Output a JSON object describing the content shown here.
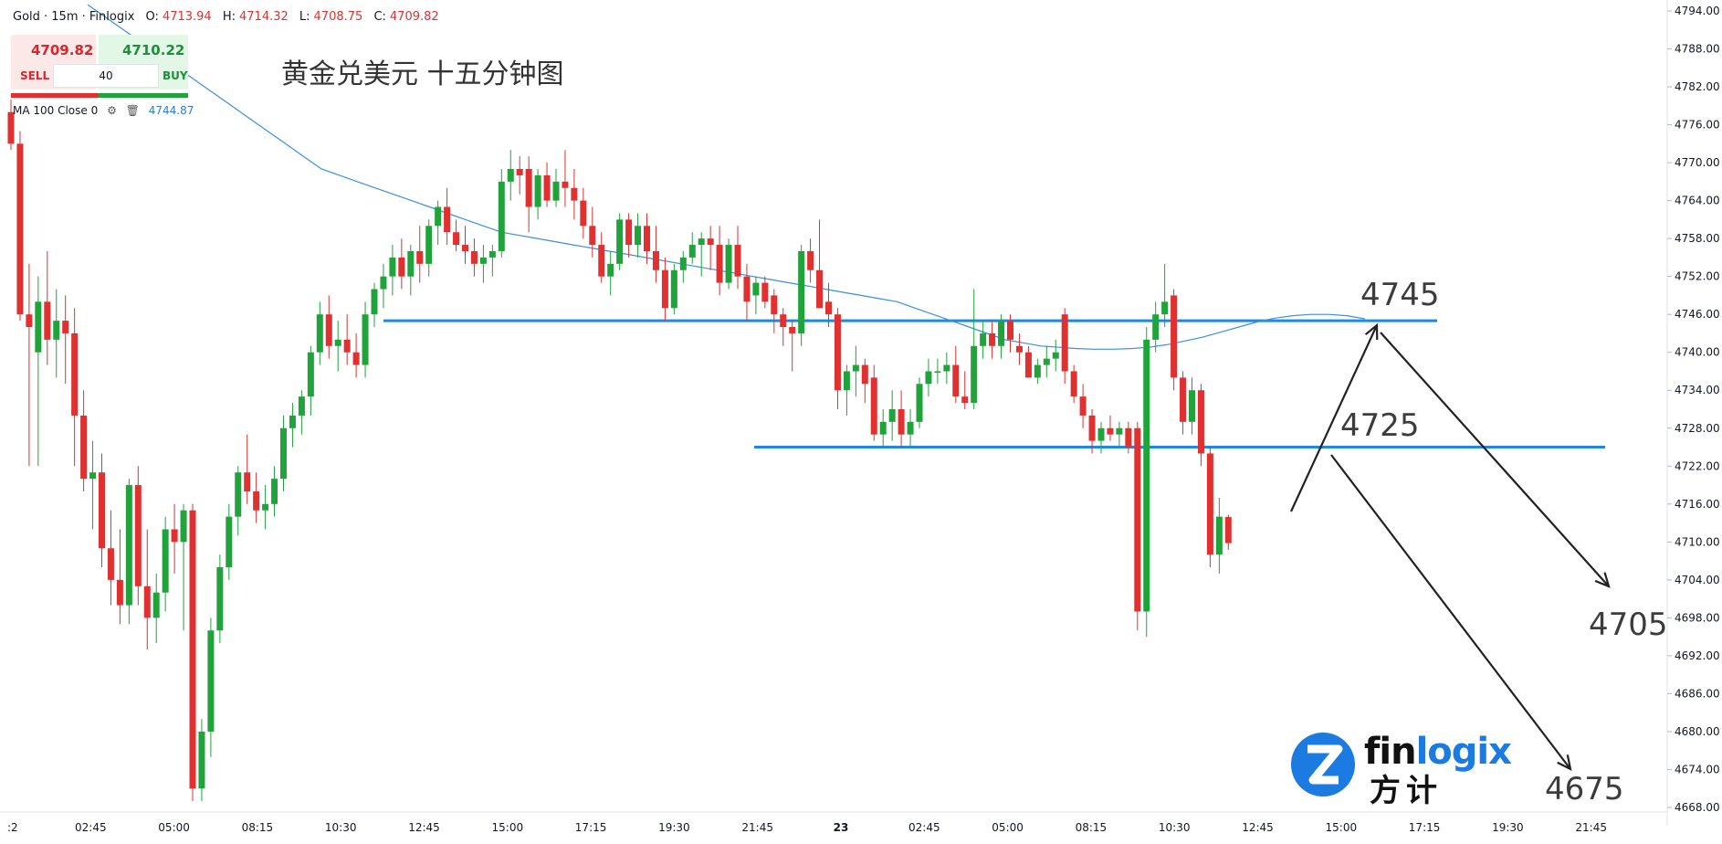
{
  "header": {
    "symbol": "Gold · 15m · Finlogix",
    "open_label": "O:",
    "open": "4713.94",
    "high_label": "H:",
    "high": "4714.32",
    "low_label": "L:",
    "low": "4708.75",
    "close_label": "C:",
    "close": "4709.82"
  },
  "trade_panel": {
    "sell_price": "4709.82",
    "buy_price": "4710.22",
    "sell_label": "SELL",
    "buy_label": "BUY",
    "quantity": "40"
  },
  "indicator": {
    "label": "MA 100 Close 0",
    "value": "4744.87",
    "icons": [
      "settings-gear-icon",
      "trash-icon"
    ]
  },
  "title": "黄金兑美元 十五分钟图",
  "annotations": {
    "level_upper": "4745",
    "level_lower": "4725",
    "target_upper": "4705",
    "target_lower": "4675"
  },
  "logo": {
    "word_a": "fin",
    "word_b": "logix",
    "cn": "方计"
  },
  "colors": {
    "up": "#1fa33a",
    "down": "#e03030",
    "ma": "#3d8fe0",
    "level_line": "#1e88e5",
    "arrow": "#222222"
  },
  "chart_data": {
    "type": "candlestick",
    "title": "黄金兑美元 十五分钟图",
    "ylim": [
      4668,
      4794
    ],
    "y_ticks": [
      "4794.00",
      "4788.00",
      "4782.00",
      "4776.00",
      "4770.00",
      "4764.00",
      "4758.00",
      "4752.00",
      "4746.00",
      "4740.00",
      "4734.00",
      "4728.00",
      "4722.00",
      "4716.00",
      "4710.00",
      "4704.00",
      "4698.00",
      "4692.00",
      "4686.00",
      "4680.00",
      "4674.00",
      "4668.00"
    ],
    "x_ticks": [
      ":2",
      "02:45",
      "05:00",
      "08:15",
      "10:30",
      "12:45",
      "15:00",
      "17:15",
      "19:30",
      "21:45",
      "23",
      "02:45",
      "05:00",
      "08:15",
      "10:30",
      "12:45",
      "15:00",
      "17:15",
      "19:30",
      "21:45"
    ],
    "candles": [
      {
        "o": 4778,
        "h": 4780,
        "l": 4772,
        "c": 4773
      },
      {
        "o": 4773,
        "h": 4775,
        "l": 4745,
        "c": 4746
      },
      {
        "o": 4746,
        "h": 4754,
        "l": 4722,
        "c": 4744
      },
      {
        "o": 4740,
        "h": 4752,
        "l": 4722,
        "c": 4748
      },
      {
        "o": 4748,
        "h": 4756,
        "l": 4738,
        "c": 4742
      },
      {
        "o": 4742,
        "h": 4750,
        "l": 4736,
        "c": 4745
      },
      {
        "o": 4745,
        "h": 4749,
        "l": 4735,
        "c": 4743
      },
      {
        "o": 4743,
        "h": 4747,
        "l": 4722,
        "c": 4730
      },
      {
        "o": 4730,
        "h": 4734,
        "l": 4718,
        "c": 4720
      },
      {
        "o": 4720,
        "h": 4726,
        "l": 4712,
        "c": 4721
      },
      {
        "o": 4721,
        "h": 4724,
        "l": 4706,
        "c": 4709
      },
      {
        "o": 4709,
        "h": 4715,
        "l": 4700,
        "c": 4704
      },
      {
        "o": 4704,
        "h": 4712,
        "l": 4697,
        "c": 4700
      },
      {
        "o": 4700,
        "h": 4720,
        "l": 4697,
        "c": 4719
      },
      {
        "o": 4719,
        "h": 4722,
        "l": 4700,
        "c": 4703
      },
      {
        "o": 4703,
        "h": 4712,
        "l": 4693,
        "c": 4698
      },
      {
        "o": 4698,
        "h": 4705,
        "l": 4694,
        "c": 4702
      },
      {
        "o": 4702,
        "h": 4714,
        "l": 4699,
        "c": 4712
      },
      {
        "o": 4712,
        "h": 4716,
        "l": 4705,
        "c": 4710
      },
      {
        "o": 4710,
        "h": 4716,
        "l": 4696,
        "c": 4715
      },
      {
        "o": 4715,
        "h": 4716,
        "l": 4669,
        "c": 4671
      },
      {
        "o": 4671,
        "h": 4682,
        "l": 4669,
        "c": 4680
      },
      {
        "o": 4680,
        "h": 4698,
        "l": 4676,
        "c": 4696
      },
      {
        "o": 4696,
        "h": 4708,
        "l": 4694,
        "c": 4706
      },
      {
        "o": 4706,
        "h": 4716,
        "l": 4704,
        "c": 4714
      },
      {
        "o": 4714,
        "h": 4722,
        "l": 4711,
        "c": 4721
      },
      {
        "o": 4721,
        "h": 4727,
        "l": 4716,
        "c": 4718
      },
      {
        "o": 4718,
        "h": 4721,
        "l": 4713,
        "c": 4715
      },
      {
        "o": 4715,
        "h": 4719,
        "l": 4712,
        "c": 4716
      },
      {
        "o": 4716,
        "h": 4722,
        "l": 4714,
        "c": 4720
      },
      {
        "o": 4720,
        "h": 4730,
        "l": 4718,
        "c": 4728
      },
      {
        "o": 4728,
        "h": 4732,
        "l": 4725,
        "c": 4730
      },
      {
        "o": 4730,
        "h": 4734,
        "l": 4727,
        "c": 4733
      },
      {
        "o": 4733,
        "h": 4741,
        "l": 4730,
        "c": 4740
      },
      {
        "o": 4740,
        "h": 4748,
        "l": 4738,
        "c": 4746
      },
      {
        "o": 4746,
        "h": 4749,
        "l": 4739,
        "c": 4741
      },
      {
        "o": 4741,
        "h": 4745,
        "l": 4737,
        "c": 4742
      },
      {
        "o": 4742,
        "h": 4746,
        "l": 4738,
        "c": 4740
      },
      {
        "o": 4740,
        "h": 4743,
        "l": 4736,
        "c": 4738
      },
      {
        "o": 4738,
        "h": 4748,
        "l": 4736,
        "c": 4746
      },
      {
        "o": 4746,
        "h": 4751,
        "l": 4744,
        "c": 4750
      },
      {
        "o": 4750,
        "h": 4754,
        "l": 4747,
        "c": 4752
      },
      {
        "o": 4752,
        "h": 4757,
        "l": 4749,
        "c": 4755
      },
      {
        "o": 4755,
        "h": 4758,
        "l": 4750,
        "c": 4752
      },
      {
        "o": 4752,
        "h": 4757,
        "l": 4749,
        "c": 4756
      },
      {
        "o": 4756,
        "h": 4760,
        "l": 4751,
        "c": 4754
      },
      {
        "o": 4754,
        "h": 4761,
        "l": 4752,
        "c": 4760
      },
      {
        "o": 4760,
        "h": 4764,
        "l": 4757,
        "c": 4763
      },
      {
        "o": 4763,
        "h": 4766,
        "l": 4757,
        "c": 4759
      },
      {
        "o": 4759,
        "h": 4761,
        "l": 4756,
        "c": 4757
      },
      {
        "o": 4757,
        "h": 4760,
        "l": 4754,
        "c": 4756
      },
      {
        "o": 4756,
        "h": 4758,
        "l": 4752,
        "c": 4754
      },
      {
        "o": 4754,
        "h": 4757,
        "l": 4751,
        "c": 4755
      },
      {
        "o": 4755,
        "h": 4757,
        "l": 4752,
        "c": 4756
      },
      {
        "o": 4756,
        "h": 4769,
        "l": 4755,
        "c": 4767
      },
      {
        "o": 4767,
        "h": 4772,
        "l": 4764,
        "c": 4769
      },
      {
        "o": 4769,
        "h": 4771,
        "l": 4765,
        "c": 4768
      },
      {
        "o": 4769,
        "h": 4771,
        "l": 4759,
        "c": 4763
      },
      {
        "o": 4763,
        "h": 4769,
        "l": 4761,
        "c": 4768
      },
      {
        "o": 4768,
        "h": 4770,
        "l": 4763,
        "c": 4764
      },
      {
        "o": 4764,
        "h": 4769,
        "l": 4763,
        "c": 4767
      },
      {
        "o": 4767,
        "h": 4772,
        "l": 4763,
        "c": 4766
      },
      {
        "o": 4766,
        "h": 4769,
        "l": 4761,
        "c": 4764
      },
      {
        "o": 4764,
        "h": 4766,
        "l": 4758,
        "c": 4760
      },
      {
        "o": 4760,
        "h": 4763,
        "l": 4755,
        "c": 4757
      },
      {
        "o": 4757,
        "h": 4759,
        "l": 4751,
        "c": 4752
      },
      {
        "o": 4752,
        "h": 4756,
        "l": 4749,
        "c": 4754
      },
      {
        "o": 4754,
        "h": 4762,
        "l": 4753,
        "c": 4761
      },
      {
        "o": 4761,
        "h": 4762,
        "l": 4755,
        "c": 4757
      },
      {
        "o": 4757,
        "h": 4762,
        "l": 4755,
        "c": 4760
      },
      {
        "o": 4760,
        "h": 4762,
        "l": 4754,
        "c": 4756
      },
      {
        "o": 4756,
        "h": 4760,
        "l": 4751,
        "c": 4753
      },
      {
        "o": 4753,
        "h": 4755,
        "l": 4745,
        "c": 4747
      },
      {
        "o": 4747,
        "h": 4754,
        "l": 4746,
        "c": 4753
      },
      {
        "o": 4753,
        "h": 4756,
        "l": 4751,
        "c": 4755
      },
      {
        "o": 4755,
        "h": 4759,
        "l": 4754,
        "c": 4757
      },
      {
        "o": 4757,
        "h": 4759,
        "l": 4752,
        "c": 4758
      },
      {
        "o": 4758,
        "h": 4760,
        "l": 4753,
        "c": 4757
      },
      {
        "o": 4757,
        "h": 4760,
        "l": 4749,
        "c": 4751
      },
      {
        "o": 4751,
        "h": 4758,
        "l": 4750,
        "c": 4757
      },
      {
        "o": 4757,
        "h": 4760,
        "l": 4750,
        "c": 4752
      },
      {
        "o": 4752,
        "h": 4754,
        "l": 4745,
        "c": 4748
      },
      {
        "o": 4749,
        "h": 4752,
        "l": 4746,
        "c": 4751
      },
      {
        "o": 4751,
        "h": 4752,
        "l": 4747,
        "c": 4748
      },
      {
        "o": 4749,
        "h": 4750,
        "l": 4743,
        "c": 4746
      },
      {
        "o": 4746,
        "h": 4747,
        "l": 4741,
        "c": 4744
      },
      {
        "o": 4744,
        "h": 4745,
        "l": 4737,
        "c": 4743
      },
      {
        "o": 4743,
        "h": 4757,
        "l": 4741,
        "c": 4756
      },
      {
        "o": 4756,
        "h": 4758,
        "l": 4751,
        "c": 4753
      },
      {
        "o": 4753,
        "h": 4761,
        "l": 4747,
        "c": 4747
      },
      {
        "o": 4748,
        "h": 4751,
        "l": 4744,
        "c": 4746
      },
      {
        "o": 4746,
        "h": 4747,
        "l": 4731,
        "c": 4734
      },
      {
        "o": 4734,
        "h": 4738,
        "l": 4730,
        "c": 4737
      },
      {
        "o": 4737,
        "h": 4741,
        "l": 4733,
        "c": 4738
      },
      {
        "o": 4738,
        "h": 4739,
        "l": 4732,
        "c": 4735
      },
      {
        "o": 4736,
        "h": 4738,
        "l": 4726,
        "c": 4727
      },
      {
        "o": 4727,
        "h": 4731,
        "l": 4725,
        "c": 4729
      },
      {
        "o": 4729,
        "h": 4734,
        "l": 4726,
        "c": 4731
      },
      {
        "o": 4731,
        "h": 4734,
        "l": 4725,
        "c": 4727
      },
      {
        "o": 4727,
        "h": 4731,
        "l": 4725,
        "c": 4729
      },
      {
        "o": 4729,
        "h": 4736,
        "l": 4728,
        "c": 4735
      },
      {
        "o": 4735,
        "h": 4739,
        "l": 4733,
        "c": 4737
      },
      {
        "o": 4737,
        "h": 4739,
        "l": 4735,
        "c": 4737
      },
      {
        "o": 4737,
        "h": 4740,
        "l": 4735,
        "c": 4738
      },
      {
        "o": 4738,
        "h": 4741,
        "l": 4732,
        "c": 4733
      },
      {
        "o": 4733,
        "h": 4737,
        "l": 4731,
        "c": 4732
      },
      {
        "o": 4732,
        "h": 4750,
        "l": 4731,
        "c": 4741
      },
      {
        "o": 4741,
        "h": 4745,
        "l": 4739,
        "c": 4743
      },
      {
        "o": 4743,
        "h": 4745,
        "l": 4739,
        "c": 4741
      },
      {
        "o": 4741,
        "h": 4746,
        "l": 4739,
        "c": 4745
      },
      {
        "o": 4745,
        "h": 4746,
        "l": 4740,
        "c": 4742
      },
      {
        "o": 4741,
        "h": 4743,
        "l": 4738,
        "c": 4740
      },
      {
        "o": 4740,
        "h": 4741,
        "l": 4736,
        "c": 4736
      },
      {
        "o": 4736,
        "h": 4739,
        "l": 4735,
        "c": 4738
      },
      {
        "o": 4738,
        "h": 4741,
        "l": 4736,
        "c": 4739
      },
      {
        "o": 4739,
        "h": 4742,
        "l": 4737,
        "c": 4740
      },
      {
        "o": 4746,
        "h": 4747,
        "l": 4735,
        "c": 4737
      },
      {
        "o": 4737,
        "h": 4738,
        "l": 4732,
        "c": 4733
      },
      {
        "o": 4733,
        "h": 4735,
        "l": 4728,
        "c": 4730
      },
      {
        "o": 4730,
        "h": 4731,
        "l": 4724,
        "c": 4726
      },
      {
        "o": 4726,
        "h": 4729,
        "l": 4724,
        "c": 4728
      },
      {
        "o": 4728,
        "h": 4730,
        "l": 4726,
        "c": 4727
      },
      {
        "o": 4727,
        "h": 4729,
        "l": 4725,
        "c": 4728
      },
      {
        "o": 4728,
        "h": 4729,
        "l": 4724,
        "c": 4725
      },
      {
        "o": 4728,
        "h": 4729,
        "l": 4696,
        "c": 4699
      },
      {
        "o": 4699,
        "h": 4744,
        "l": 4695,
        "c": 4742
      },
      {
        "o": 4742,
        "h": 4748,
        "l": 4740,
        "c": 4746
      },
      {
        "o": 4746,
        "h": 4754,
        "l": 4744,
        "c": 4748
      },
      {
        "o": 4749,
        "h": 4750,
        "l": 4734,
        "c": 4736
      },
      {
        "o": 4736,
        "h": 4737,
        "l": 4727,
        "c": 4729
      },
      {
        "o": 4729,
        "h": 4736,
        "l": 4727,
        "c": 4734
      },
      {
        "o": 4734,
        "h": 4735,
        "l": 4722,
        "c": 4724
      },
      {
        "o": 4724,
        "h": 4725,
        "l": 4706,
        "c": 4708
      },
      {
        "o": 4708,
        "h": 4717,
        "l": 4705,
        "c": 4714
      },
      {
        "o": 4713.94,
        "h": 4714.32,
        "l": 4708.75,
        "c": 4709.82
      }
    ],
    "ma100": [
      [
        0,
        4795
      ],
      [
        1,
        4793
      ],
      [
        2,
        4791
      ],
      [
        3,
        4789
      ],
      [
        4,
        4787
      ],
      [
        5,
        4785
      ],
      [
        6,
        4783
      ],
      [
        7,
        4781
      ],
      [
        8,
        4779
      ],
      [
        9,
        4777
      ],
      [
        10,
        4775
      ],
      [
        11,
        4773
      ],
      [
        12,
        4771
      ],
      [
        13,
        4769
      ],
      [
        14,
        4768
      ],
      [
        15,
        4767
      ],
      [
        16,
        4766
      ],
      [
        17,
        4765
      ],
      [
        18,
        4764
      ],
      [
        19,
        4763
      ],
      [
        20,
        4762
      ],
      [
        21,
        4761
      ],
      [
        22,
        4760
      ],
      [
        23,
        4759
      ],
      [
        24,
        4758.5
      ],
      [
        25,
        4758
      ],
      [
        26,
        4757.5
      ],
      [
        27,
        4757
      ],
      [
        28,
        4756.5
      ],
      [
        29,
        4756
      ],
      [
        30,
        4755.5
      ],
      [
        31,
        4755
      ],
      [
        32,
        4754.5
      ],
      [
        33,
        4754
      ],
      [
        34,
        4753.5
      ],
      [
        35,
        4753
      ],
      [
        36,
        4752.5
      ],
      [
        37,
        4752
      ],
      [
        38,
        4751.5
      ],
      [
        39,
        4751
      ],
      [
        40,
        4750.5
      ],
      [
        41,
        4750
      ],
      [
        42,
        4749.5
      ],
      [
        43,
        4749
      ],
      [
        44,
        4748.5
      ],
      [
        45,
        4748
      ],
      [
        46,
        4747
      ],
      [
        47,
        4746
      ],
      [
        48,
        4745
      ],
      [
        49,
        4744
      ],
      [
        50,
        4743
      ],
      [
        51,
        4742
      ],
      [
        52,
        4741.5
      ],
      [
        53,
        4741
      ],
      [
        54,
        4740.8
      ],
      [
        55,
        4740.6
      ],
      [
        56,
        4740.5
      ],
      [
        57,
        4740.5
      ],
      [
        58,
        4740.6
      ],
      [
        59,
        4740.8
      ],
      [
        60,
        4741.2
      ],
      [
        61,
        4741.8
      ],
      [
        62,
        4742.4
      ],
      [
        63,
        4743.2
      ],
      [
        64,
        4744
      ],
      [
        65,
        4744.8
      ],
      [
        66,
        4745.4
      ],
      [
        67,
        4745.8
      ],
      [
        68,
        4746
      ],
      [
        69,
        4746
      ],
      [
        70,
        4745.8
      ],
      [
        71,
        4745.3
      ]
    ],
    "horizontal_levels": [
      4745,
      4725
    ],
    "annotation_labels": [
      "4745",
      "4725",
      "4705",
      "4675"
    ]
  }
}
